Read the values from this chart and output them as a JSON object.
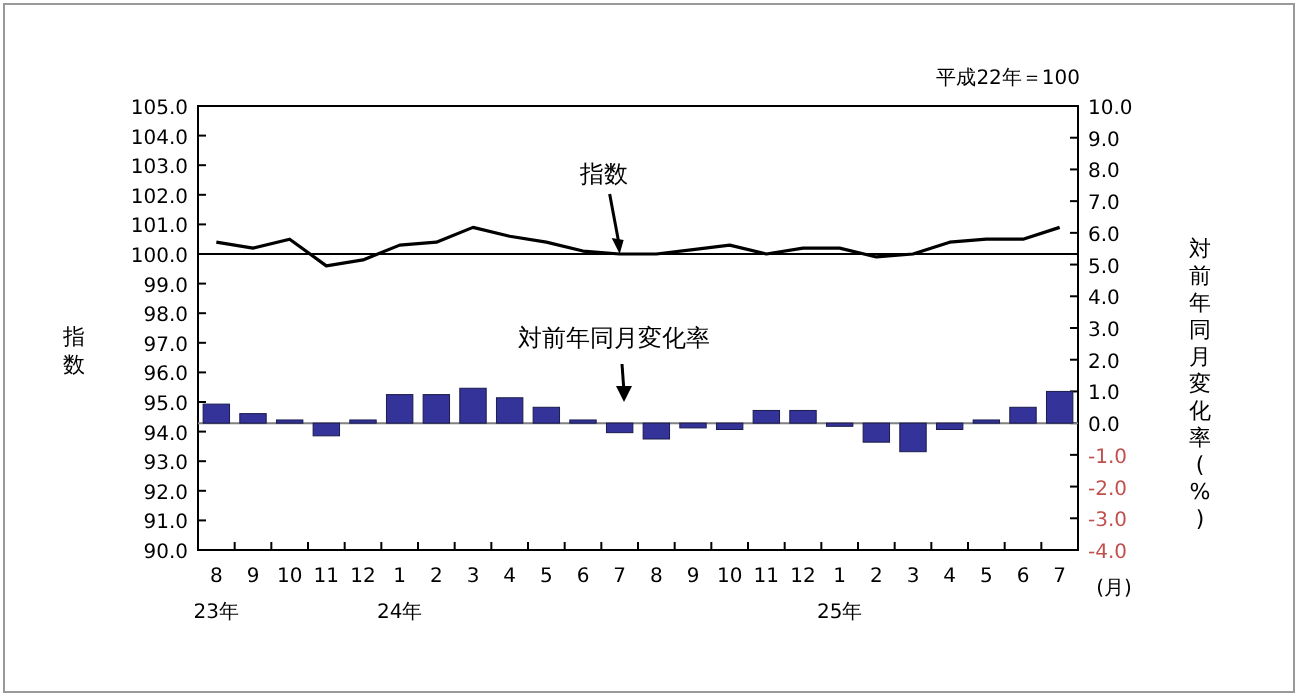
{
  "chart_data": {
    "type": "bar",
    "subtitle": "平成22年＝100",
    "ylabel": "指数",
    "y2label": "対前年同月変化率(%)",
    "xlabel": "(月)",
    "categories": [
      "8\n23年",
      "9",
      "10",
      "11",
      "12",
      "1\n24年",
      "2",
      "3",
      "4",
      "5",
      "6",
      "7",
      "8",
      "9",
      "10",
      "11",
      "12",
      "1\n25年",
      "2",
      "3",
      "4",
      "5",
      "6",
      "7"
    ],
    "series": [
      {
        "type": "line",
        "color": "#000000",
        "values": [
          100.4,
          100.2,
          100.5,
          99.6,
          99.8,
          100.3,
          100.4,
          100.9,
          100.6,
          100.4,
          100.1,
          100.0,
          100.0,
          100.15,
          100.3,
          100.0,
          100.2,
          100.2,
          99.9,
          100.0,
          100.4,
          100.5,
          100.5,
          100.9
        ]
      },
      {
        "axis": "y2",
        "color": "#333399",
        "values": [
          0.6,
          0.3,
          0.1,
          -0.4,
          0.1,
          0.9,
          0.9,
          1.1,
          0.8,
          0.5,
          0.1,
          -0.3,
          -0.5,
          -0.15,
          -0.2,
          0.4,
          0.4,
          -0.1,
          -0.6,
          -0.9,
          -0.2,
          0.1,
          0.5,
          1.0
        ]
      }
    ],
    "ylim": [
      90,
      105
    ],
    "yticks": [
      {
        "value": 90,
        "label": "90.0"
      },
      {
        "value": 91,
        "label": "91.0"
      },
      {
        "value": 92,
        "label": "92.0"
      },
      {
        "value": 93,
        "label": "93.0"
      },
      {
        "value": 94,
        "label": "94.0"
      },
      {
        "value": 95,
        "label": "95.0"
      },
      {
        "value": 96,
        "label": "96.0"
      },
      {
        "value": 97,
        "label": "97.0"
      },
      {
        "value": 98,
        "label": "98.0"
      },
      {
        "value": 99,
        "label": "99.0"
      },
      {
        "value": 100,
        "label": "100.0"
      },
      {
        "value": 101,
        "label": "101.0"
      },
      {
        "value": 102,
        "label": "102.0"
      },
      {
        "value": 103,
        "label": "103.0"
      },
      {
        "value": 104,
        "label": "104.0"
      },
      {
        "value": 105,
        "label": "105.0"
      }
    ],
    "y2lim": [
      -4,
      10
    ],
    "y2ticks": [
      {
        "value": -4,
        "label": "-4.0"
      },
      {
        "value": -3,
        "label": "-3.0"
      },
      {
        "value": -2,
        "label": "-2.0"
      },
      {
        "value": -1,
        "label": "-1.0"
      },
      {
        "value": 0,
        "label": "0.0"
      },
      {
        "value": 1,
        "label": "1.0"
      },
      {
        "value": 2,
        "label": "2.0"
      },
      {
        "value": 3,
        "label": "3.0"
      },
      {
        "value": 4,
        "label": "4.0"
      },
      {
        "value": 5,
        "label": "5.0"
      },
      {
        "value": 6,
        "label": "6.0"
      },
      {
        "value": 7,
        "label": "7.0"
      },
      {
        "value": 8,
        "label": "8.0"
      },
      {
        "value": 9,
        "label": "9.0"
      },
      {
        "value": 10,
        "label": "10.0"
      }
    ],
    "ref_lines": [
      {
        "axis": "y",
        "value": 100,
        "color": "#000000"
      },
      {
        "axis": "y2",
        "value": 0,
        "color": "#808080"
      }
    ],
    "annotations": [
      {
        "text": "指数",
        "x": "7",
        "y": 100.0
      },
      "対前年同月変化率"
    ],
    "grid": false
  }
}
